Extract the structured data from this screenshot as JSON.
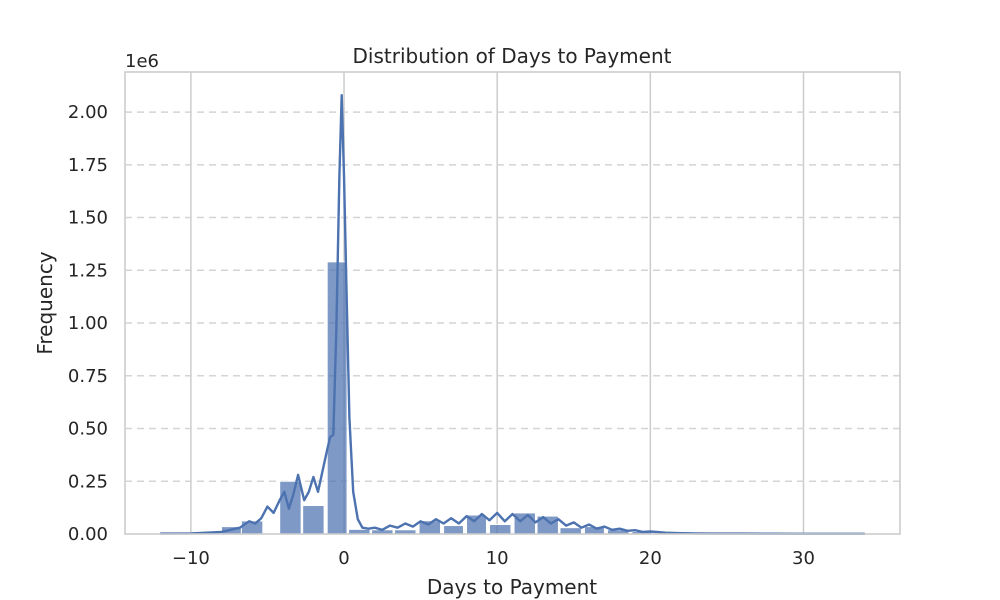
{
  "chart_data": {
    "type": "bar",
    "title": "Distribution of Days to Payment",
    "xlabel": "Days to Payment",
    "ylabel": "Frequency",
    "y_offset_text": "1e6",
    "xlim": [
      -14.3,
      36.3
    ],
    "ylim": [
      0,
      2.19
    ],
    "x_ticks": [
      -10,
      0,
      10,
      20,
      30
    ],
    "x_tick_labels": [
      "−10",
      "0",
      "10",
      "20",
      "30"
    ],
    "y_ticks": [
      0,
      0.25,
      0.5,
      0.75,
      1.0,
      1.25,
      1.5,
      1.75,
      2.0
    ],
    "y_tick_labels": [
      "0.00",
      "0.25",
      "0.50",
      "0.75",
      "1.00",
      "1.25",
      "1.50",
      "1.75",
      "2.00"
    ],
    "grid": true,
    "bar_color": "#4c72b0",
    "line_color": "#4c72b0",
    "bins": [
      {
        "x0": -12.0,
        "x1": -10.0,
        "value": 0.004
      },
      {
        "x0": -10.0,
        "x1": -8.0,
        "value": 0.006
      },
      {
        "x0": -8.0,
        "x1": -6.7,
        "value": 0.035
      },
      {
        "x0": -6.7,
        "x1": -5.3,
        "value": 0.062
      },
      {
        "x0": -4.2,
        "x1": -2.8,
        "value": 0.25
      },
      {
        "x0": -2.7,
        "x1": -1.3,
        "value": 0.135
      },
      {
        "x0": -1.1,
        "x1": 0.2,
        "value": 1.29
      },
      {
        "x0": 0.3,
        "x1": 1.7,
        "value": 0.022
      },
      {
        "x0": 1.8,
        "x1": 3.2,
        "value": 0.02
      },
      {
        "x0": 3.3,
        "x1": 4.7,
        "value": 0.02
      },
      {
        "x0": 4.9,
        "x1": 6.3,
        "value": 0.063
      },
      {
        "x0": 6.5,
        "x1": 7.8,
        "value": 0.04
      },
      {
        "x0": 8.0,
        "x1": 9.3,
        "value": 0.09
      },
      {
        "x0": 9.5,
        "x1": 10.9,
        "value": 0.045
      },
      {
        "x0": 11.1,
        "x1": 12.5,
        "value": 0.1
      },
      {
        "x0": 12.6,
        "x1": 14.0,
        "value": 0.085
      },
      {
        "x0": 14.1,
        "x1": 15.5,
        "value": 0.03
      },
      {
        "x0": 15.7,
        "x1": 17.0,
        "value": 0.035
      },
      {
        "x0": 17.2,
        "x1": 18.6,
        "value": 0.02
      },
      {
        "x0": 18.8,
        "x1": 20.1,
        "value": 0.012
      },
      {
        "x0": 20.2,
        "x1": 24.0,
        "value": 0.005
      },
      {
        "x0": 24.0,
        "x1": 30.0,
        "value": 0.003
      },
      {
        "x0": 30.0,
        "x1": 34.0,
        "value": 0.003
      }
    ],
    "kde": {
      "x": [
        -12,
        -10,
        -9,
        -8,
        -7.3,
        -6.8,
        -6.2,
        -5.8,
        -5.4,
        -5.0,
        -4.6,
        -4.2,
        -3.9,
        -3.6,
        -3.3,
        -3.0,
        -2.6,
        -2.3,
        -2.0,
        -1.7,
        -1.4,
        -1.1,
        -0.9,
        -0.7,
        -0.5,
        -0.3,
        -0.15,
        0.0,
        0.15,
        0.35,
        0.6,
        0.9,
        1.2,
        1.6,
        2.0,
        2.5,
        3.0,
        3.5,
        4.0,
        4.5,
        5.0,
        5.5,
        6.0,
        6.5,
        7.0,
        7.5,
        8.0,
        8.5,
        9.0,
        9.5,
        10.0,
        10.5,
        11.0,
        11.5,
        12.0,
        12.5,
        13.0,
        13.5,
        14.0,
        14.5,
        15.0,
        15.5,
        16.0,
        16.5,
        17.0,
        17.5,
        18.0,
        18.5,
        19.0,
        19.5,
        20.0,
        21.0,
        22.0,
        23.0,
        24.0,
        26.0,
        28.0,
        30.0,
        32.0,
        34.0
      ],
      "y": [
        0.002,
        0.003,
        0.006,
        0.01,
        0.022,
        0.03,
        0.06,
        0.05,
        0.075,
        0.13,
        0.1,
        0.16,
        0.2,
        0.12,
        0.19,
        0.28,
        0.16,
        0.2,
        0.27,
        0.2,
        0.3,
        0.4,
        0.46,
        0.47,
        0.98,
        1.7,
        2.08,
        1.7,
        1.2,
        0.55,
        0.2,
        0.07,
        0.03,
        0.025,
        0.03,
        0.02,
        0.04,
        0.03,
        0.05,
        0.035,
        0.06,
        0.045,
        0.07,
        0.05,
        0.075,
        0.05,
        0.085,
        0.06,
        0.095,
        0.065,
        0.1,
        0.06,
        0.095,
        0.06,
        0.09,
        0.055,
        0.08,
        0.05,
        0.07,
        0.04,
        0.055,
        0.03,
        0.045,
        0.025,
        0.035,
        0.02,
        0.025,
        0.015,
        0.018,
        0.01,
        0.012,
        0.006,
        0.004,
        0.003,
        0.002,
        0.002,
        0.0015,
        0.001,
        0.001,
        0.001
      ]
    }
  }
}
